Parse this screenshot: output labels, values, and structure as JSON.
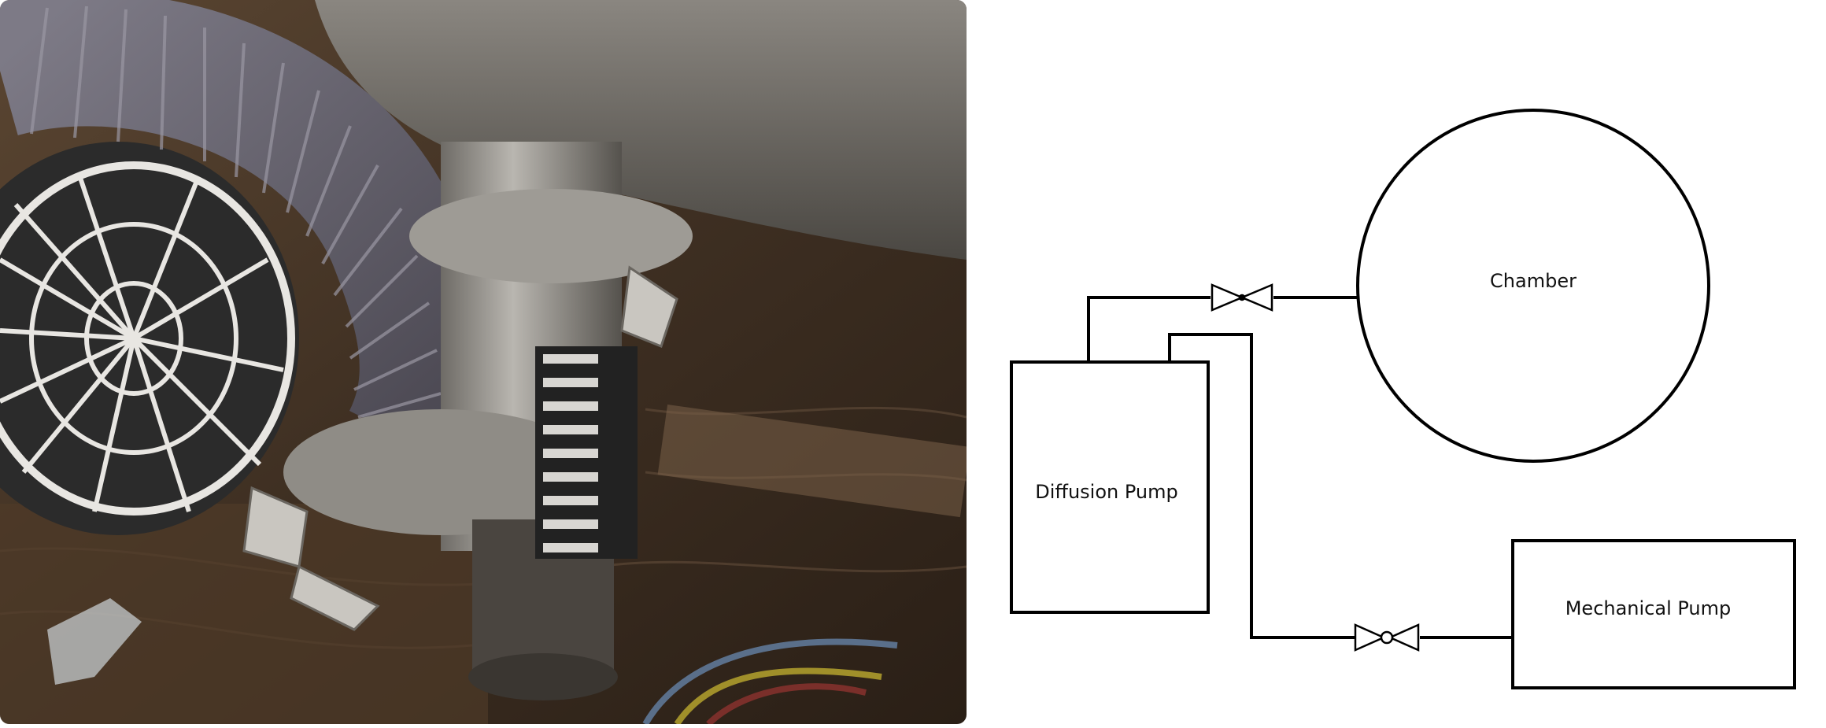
{
  "diagram": {
    "chamber_label": "Chamber",
    "diffusion_pump_label": "Diffusion Pump",
    "mechanical_pump_label": "Mechanical Pump"
  },
  "colors": {
    "line": "#000000",
    "background": "#ffffff"
  }
}
